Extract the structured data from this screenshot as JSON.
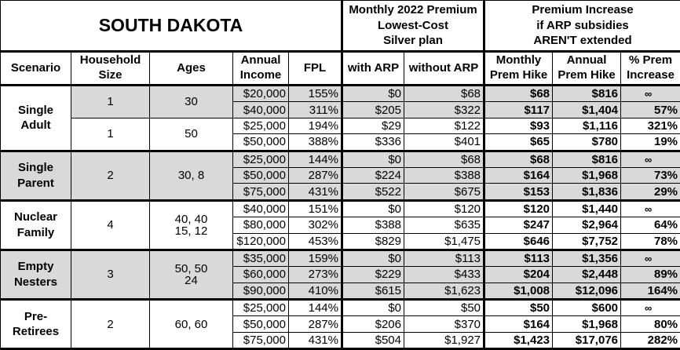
{
  "title": "SOUTH DAKOTA",
  "header_groups": {
    "premium": [
      "Monthly 2022 Premium",
      "Lowest-Cost",
      "Silver plan"
    ],
    "increase": [
      "Premium Increase",
      "if ARP subsidies",
      "AREN'T extended"
    ]
  },
  "columns": [
    [
      "Scenario"
    ],
    [
      "Household",
      "Size"
    ],
    [
      "Ages"
    ],
    [
      "Annual",
      "Income"
    ],
    [
      "FPL"
    ],
    [
      "with ARP"
    ],
    [
      "without ARP"
    ],
    [
      "Monthly",
      "Prem Hike"
    ],
    [
      "Annual",
      "Prem Hike"
    ],
    [
      "% Prem",
      "Increase"
    ]
  ],
  "shade_color": "#d9d9d9",
  "groups": [
    {
      "scenario": [
        "Single",
        "Adult"
      ],
      "shaded": false,
      "subgroups": [
        {
          "household": "1",
          "ages": [
            "30"
          ],
          "shaded": true,
          "rows": [
            [
              "$20,000",
              "155%",
              "$0",
              "$68",
              "$68",
              "$816",
              "∞"
            ],
            [
              "$40,000",
              "311%",
              "$205",
              "$322",
              "$117",
              "$1,404",
              "57%"
            ]
          ]
        },
        {
          "household": "1",
          "ages": [
            "50"
          ],
          "shaded": false,
          "rows": [
            [
              "$25,000",
              "194%",
              "$29",
              "$122",
              "$93",
              "$1,116",
              "321%"
            ],
            [
              "$50,000",
              "388%",
              "$336",
              "$401",
              "$65",
              "$780",
              "19%"
            ]
          ]
        }
      ]
    },
    {
      "scenario": [
        "Single",
        "Parent"
      ],
      "shaded": true,
      "subgroups": [
        {
          "household": "2",
          "ages": [
            "30, 8"
          ],
          "shaded": true,
          "rows": [
            [
              "$25,000",
              "144%",
              "$0",
              "$68",
              "$68",
              "$816",
              "∞"
            ],
            [
              "$50,000",
              "287%",
              "$224",
              "$388",
              "$164",
              "$1,968",
              "73%"
            ],
            [
              "$75,000",
              "431%",
              "$522",
              "$675",
              "$153",
              "$1,836",
              "29%"
            ]
          ]
        }
      ]
    },
    {
      "scenario": [
        "Nuclear",
        "Family"
      ],
      "shaded": false,
      "subgroups": [
        {
          "household": "4",
          "ages": [
            "40, 40",
            "15, 12"
          ],
          "shaded": false,
          "rows": [
            [
              "$40,000",
              "151%",
              "$0",
              "$120",
              "$120",
              "$1,440",
              "∞"
            ],
            [
              "$80,000",
              "302%",
              "$388",
              "$635",
              "$247",
              "$2,964",
              "64%"
            ],
            [
              "$120,000",
              "453%",
              "$829",
              "$1,475",
              "$646",
              "$7,752",
              "78%"
            ]
          ]
        }
      ]
    },
    {
      "scenario": [
        "Empty",
        "Nesters"
      ],
      "shaded": true,
      "subgroups": [
        {
          "household": "3",
          "ages": [
            "50, 50",
            "24"
          ],
          "shaded": true,
          "rows": [
            [
              "$35,000",
              "159%",
              "$0",
              "$113",
              "$113",
              "$1,356",
              "∞"
            ],
            [
              "$60,000",
              "273%",
              "$229",
              "$433",
              "$204",
              "$2,448",
              "89%"
            ],
            [
              "$90,000",
              "410%",
              "$615",
              "$1,623",
              "$1,008",
              "$12,096",
              "164%"
            ]
          ]
        }
      ]
    },
    {
      "scenario": [
        "Pre-",
        "Retirees"
      ],
      "shaded": false,
      "subgroups": [
        {
          "household": "2",
          "ages": [
            "60, 60"
          ],
          "shaded": false,
          "rows": [
            [
              "$25,000",
              "144%",
              "$0",
              "$50",
              "$50",
              "$600",
              "∞"
            ],
            [
              "$50,000",
              "287%",
              "$206",
              "$370",
              "$164",
              "$1,968",
              "80%"
            ],
            [
              "$75,000",
              "431%",
              "$504",
              "$1,927",
              "$1,423",
              "$17,076",
              "282%"
            ]
          ]
        }
      ]
    }
  ]
}
